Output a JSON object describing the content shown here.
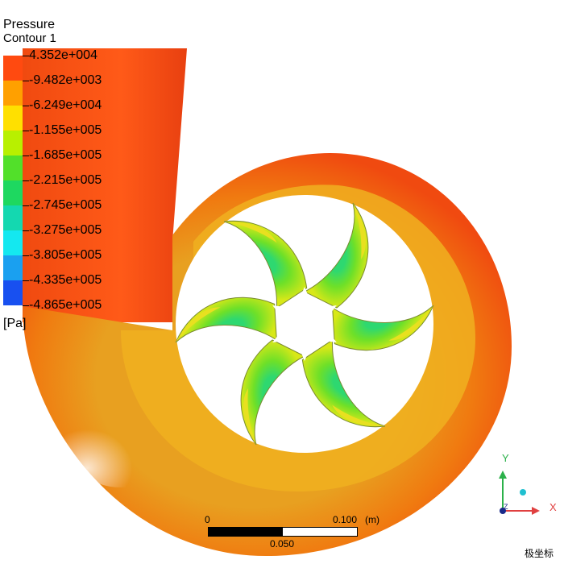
{
  "legend": {
    "title": "Pressure",
    "subtitle": "Contour 1",
    "unit": "[Pa]",
    "levels": [
      "4.352e+004",
      "-9.482e+003",
      "-6.249e+004",
      "-1.155e+005",
      "-1.685e+005",
      "-2.215e+005",
      "-2.745e+005",
      "-3.275e+005",
      "-3.805e+005",
      "-4.335e+005",
      "-4.865e+005"
    ],
    "colors": [
      "#ff4a10",
      "#ffa000",
      "#ffe000",
      "#b8f000",
      "#52e02a",
      "#1ed860",
      "#14d8b0",
      "#14e8f0",
      "#1aa0f0",
      "#1850f0"
    ]
  },
  "scale": {
    "zero": "0",
    "mid": "0.050",
    "max": "0.100",
    "unit": "(m)"
  },
  "axes": {
    "x": "X",
    "y": "Y",
    "z": "Z"
  },
  "polar_label": "极坐标"
}
